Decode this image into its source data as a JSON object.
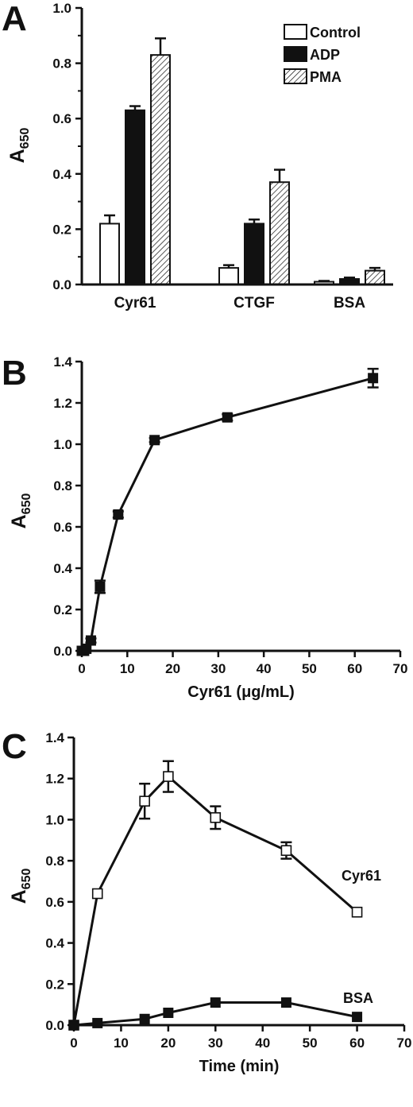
{
  "colors": {
    "ink": "#111111",
    "white": "#ffffff"
  },
  "chart_data": [
    {
      "panel": "A",
      "type": "bar",
      "ylabel_main": "A",
      "ylabel_sub": "650",
      "ylim": [
        0,
        1.0
      ],
      "yticks": [
        "0.0",
        "0.2",
        "0.4",
        "0.6",
        "0.8",
        "1.0"
      ],
      "categories": [
        "Cyr61",
        "CTGF",
        "BSA"
      ],
      "legend_position": "top-right",
      "series": [
        {
          "name": "Control",
          "fill": "white",
          "values": [
            0.22,
            0.06,
            0.01
          ],
          "errors": [
            0.03,
            0.01,
            0.003
          ]
        },
        {
          "name": "ADP",
          "fill": "black",
          "values": [
            0.63,
            0.22,
            0.02
          ],
          "errors": [
            0.015,
            0.015,
            0.005
          ]
        },
        {
          "name": "PMA",
          "fill": "hatched",
          "values": [
            0.83,
            0.37,
            0.05
          ],
          "errors": [
            0.06,
            0.045,
            0.01
          ]
        }
      ]
    },
    {
      "panel": "B",
      "type": "line",
      "ylabel_main": "A",
      "ylabel_sub": "650",
      "xlabel": "Cyr61 (μg/mL)",
      "xlim": [
        0,
        70
      ],
      "ylim": [
        0,
        1.4
      ],
      "xticks": [
        "0",
        "10",
        "20",
        "30",
        "40",
        "50",
        "60",
        "70"
      ],
      "yticks": [
        "0.0",
        "0.2",
        "0.4",
        "0.6",
        "0.8",
        "1.0",
        "1.2",
        "1.4"
      ],
      "series": [
        {
          "marker": "filled-square",
          "x": [
            0,
            0.5,
            1,
            2,
            4,
            8,
            16,
            32,
            64
          ],
          "y": [
            0.0,
            0.0,
            0.01,
            0.05,
            0.31,
            0.66,
            1.02,
            1.13,
            1.32
          ],
          "errors": [
            0,
            0,
            0,
            0.01,
            0.03,
            0.015,
            0.01,
            0.015,
            0.045
          ]
        }
      ]
    },
    {
      "panel": "C",
      "type": "line",
      "ylabel_main": "A",
      "ylabel_sub": "650",
      "xlabel": "Time (min)",
      "xlim": [
        0,
        70
      ],
      "ylim": [
        0,
        1.4
      ],
      "xticks": [
        "0",
        "10",
        "20",
        "30",
        "40",
        "50",
        "60",
        "70"
      ],
      "yticks": [
        "0.0",
        "0.2",
        "0.4",
        "0.6",
        "0.8",
        "1.0",
        "1.2",
        "1.4"
      ],
      "series": [
        {
          "name": "Cyr61",
          "marker": "open-square",
          "x": [
            0,
            5,
            15,
            20,
            30,
            45,
            60
          ],
          "y": [
            0.0,
            0.64,
            1.09,
            1.21,
            1.01,
            0.85,
            0.55
          ],
          "errors": [
            0,
            0,
            0.085,
            0.075,
            0.055,
            0.04,
            0
          ]
        },
        {
          "name": "BSA",
          "marker": "filled-square",
          "x": [
            0,
            5,
            15,
            20,
            30,
            45,
            60
          ],
          "y": [
            0.0,
            0.01,
            0.03,
            0.06,
            0.11,
            0.11,
            0.04
          ],
          "errors": [
            0,
            0,
            0,
            0,
            0,
            0,
            0
          ]
        }
      ]
    }
  ]
}
